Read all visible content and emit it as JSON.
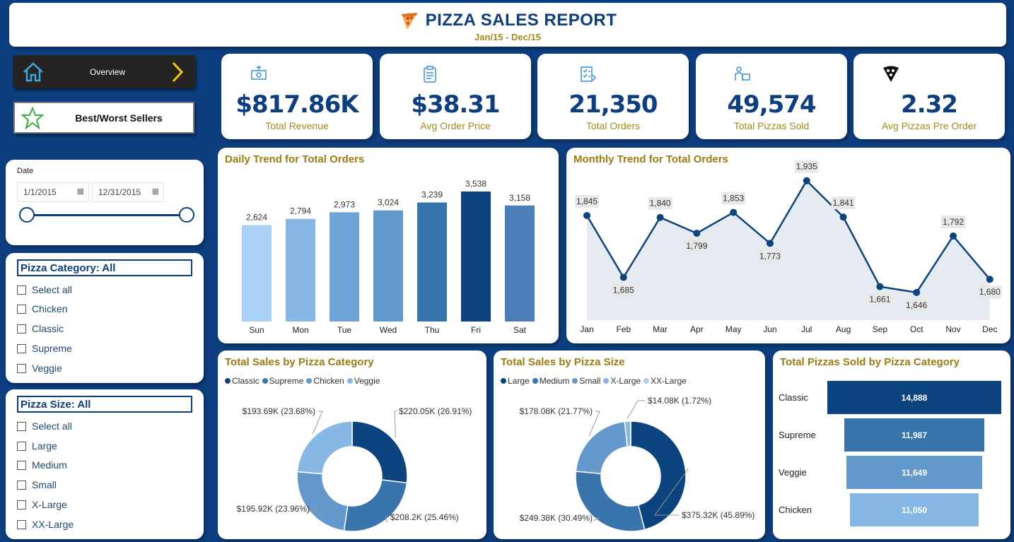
{
  "header": {
    "title": "PIZZA SALES REPORT",
    "subtitle": "Jan/15 - Dec/15",
    "icon": "pizza-icon"
  },
  "nav": {
    "overview": {
      "label": "Overview",
      "icon": "home-icon",
      "arrow": "chevron-right-icon"
    },
    "best_worst": {
      "label": "Best/Worst Sellers",
      "icon": "star-icon"
    }
  },
  "kpis": [
    {
      "value": "$817.86K",
      "label": "Total Revenue",
      "icon": "money-icon"
    },
    {
      "value": "$38.31",
      "label": "Avg Order Price",
      "icon": "clipboard-icon"
    },
    {
      "value": "21,350",
      "label": "Total Orders",
      "icon": "checklist-icon"
    },
    {
      "value": "49,574",
      "label": "Total Pizzas Sold",
      "icon": "delivery-icon"
    },
    {
      "value": "2.32",
      "label": "Avg Pizzas Pre Order",
      "icon": "pizza-slice-icon"
    }
  ],
  "date_filter": {
    "label": "Date",
    "start": "1/1/2015",
    "end": "12/31/2015",
    "range_start_fraction": 0,
    "range_end_fraction": 1
  },
  "category_slicer": {
    "header": "Pizza Category: All",
    "options": [
      "Select all",
      "Chicken",
      "Classic",
      "Supreme",
      "Veggie"
    ]
  },
  "size_slicer": {
    "header": "Pizza Size: All",
    "options": [
      "Select all",
      "Large",
      "Medium",
      "Small",
      "X-Large",
      "XX-Large"
    ]
  },
  "colors": {
    "navy": "#0d3f80",
    "gold": "#9c7c12",
    "c1": "#0b447f",
    "c2": "#3a74ad",
    "c3": "#6499cc",
    "c4": "#87b7e4",
    "c5": "#a9d1f7"
  },
  "chart_data": [
    {
      "type": "bar",
      "title": "Daily Trend for Total Orders",
      "categories": [
        "Sun",
        "Mon",
        "Tue",
        "Wed",
        "Thu",
        "Fri",
        "Sat"
      ],
      "values": [
        2624,
        2794,
        2973,
        3024,
        3239,
        3538,
        3158
      ],
      "labels": [
        "2,624",
        "2,794",
        "2,973",
        "3,024",
        "3,239",
        "3,538",
        "3,158"
      ],
      "colors": [
        "#a9d1f7",
        "#87b7e4",
        "#6fa4d7",
        "#6299cc",
        "#3a74ad",
        "#0b447f",
        "#4a7fb7"
      ]
    },
    {
      "type": "area",
      "title": "Monthly Trend for Total Orders",
      "categories": [
        "Jan",
        "Feb",
        "Mar",
        "Apr",
        "May",
        "Jun",
        "Jul",
        "Aug",
        "Sep",
        "Oct",
        "Nov",
        "Dec"
      ],
      "values": [
        1845,
        1685,
        1840,
        1799,
        1853,
        1773,
        1935,
        1841,
        1661,
        1646,
        1792,
        1680
      ],
      "labels": [
        "1,845",
        "1,685",
        "1,840",
        "1,799",
        "1,853",
        "1,773",
        "1,935",
        "1,841",
        "1,661",
        "1,646",
        "1,792",
        "1,680"
      ]
    },
    {
      "type": "pie",
      "title": "Total Sales by Pizza Category",
      "legend": [
        "Classic",
        "Supreme",
        "Chicken",
        "Veggie"
      ],
      "values": [
        220.05,
        208.2,
        195.92,
        193.69
      ],
      "labels": [
        "$220.05K (26.91%)",
        "$208.2K (25.46%)",
        "$195.92K (23.96%)",
        "$193.69K (23.68%)"
      ],
      "colors": [
        "#0b447f",
        "#3a74ad",
        "#6499cc",
        "#87b7e4"
      ]
    },
    {
      "type": "pie",
      "title": "Total Sales by Pizza Size",
      "legend": [
        "Large",
        "Medium",
        "Small",
        "X-Large",
        "XX-Large"
      ],
      "values": [
        375.32,
        249.38,
        178.08,
        14.08,
        0.5
      ],
      "labels": [
        "$375.32K (45.89%)",
        "$249.38K (30.49%)",
        "$178.08K (21.77%)",
        "$14.08K (1.72%)",
        ""
      ],
      "colors": [
        "#0b447f",
        "#3a74ad",
        "#6499cc",
        "#87b7e4",
        "#a9d1f7"
      ]
    },
    {
      "type": "bar",
      "title": "Total Pizzas Sold by Pizza Category",
      "categories": [
        "Classic",
        "Supreme",
        "Veggie",
        "Chicken"
      ],
      "values": [
        14888,
        11987,
        11649,
        11050
      ],
      "labels": [
        "14,888",
        "11,987",
        "11,649",
        "11,050"
      ],
      "colors": [
        "#0b447f",
        "#3a74ad",
        "#6499cc",
        "#87b7e4"
      ]
    }
  ]
}
